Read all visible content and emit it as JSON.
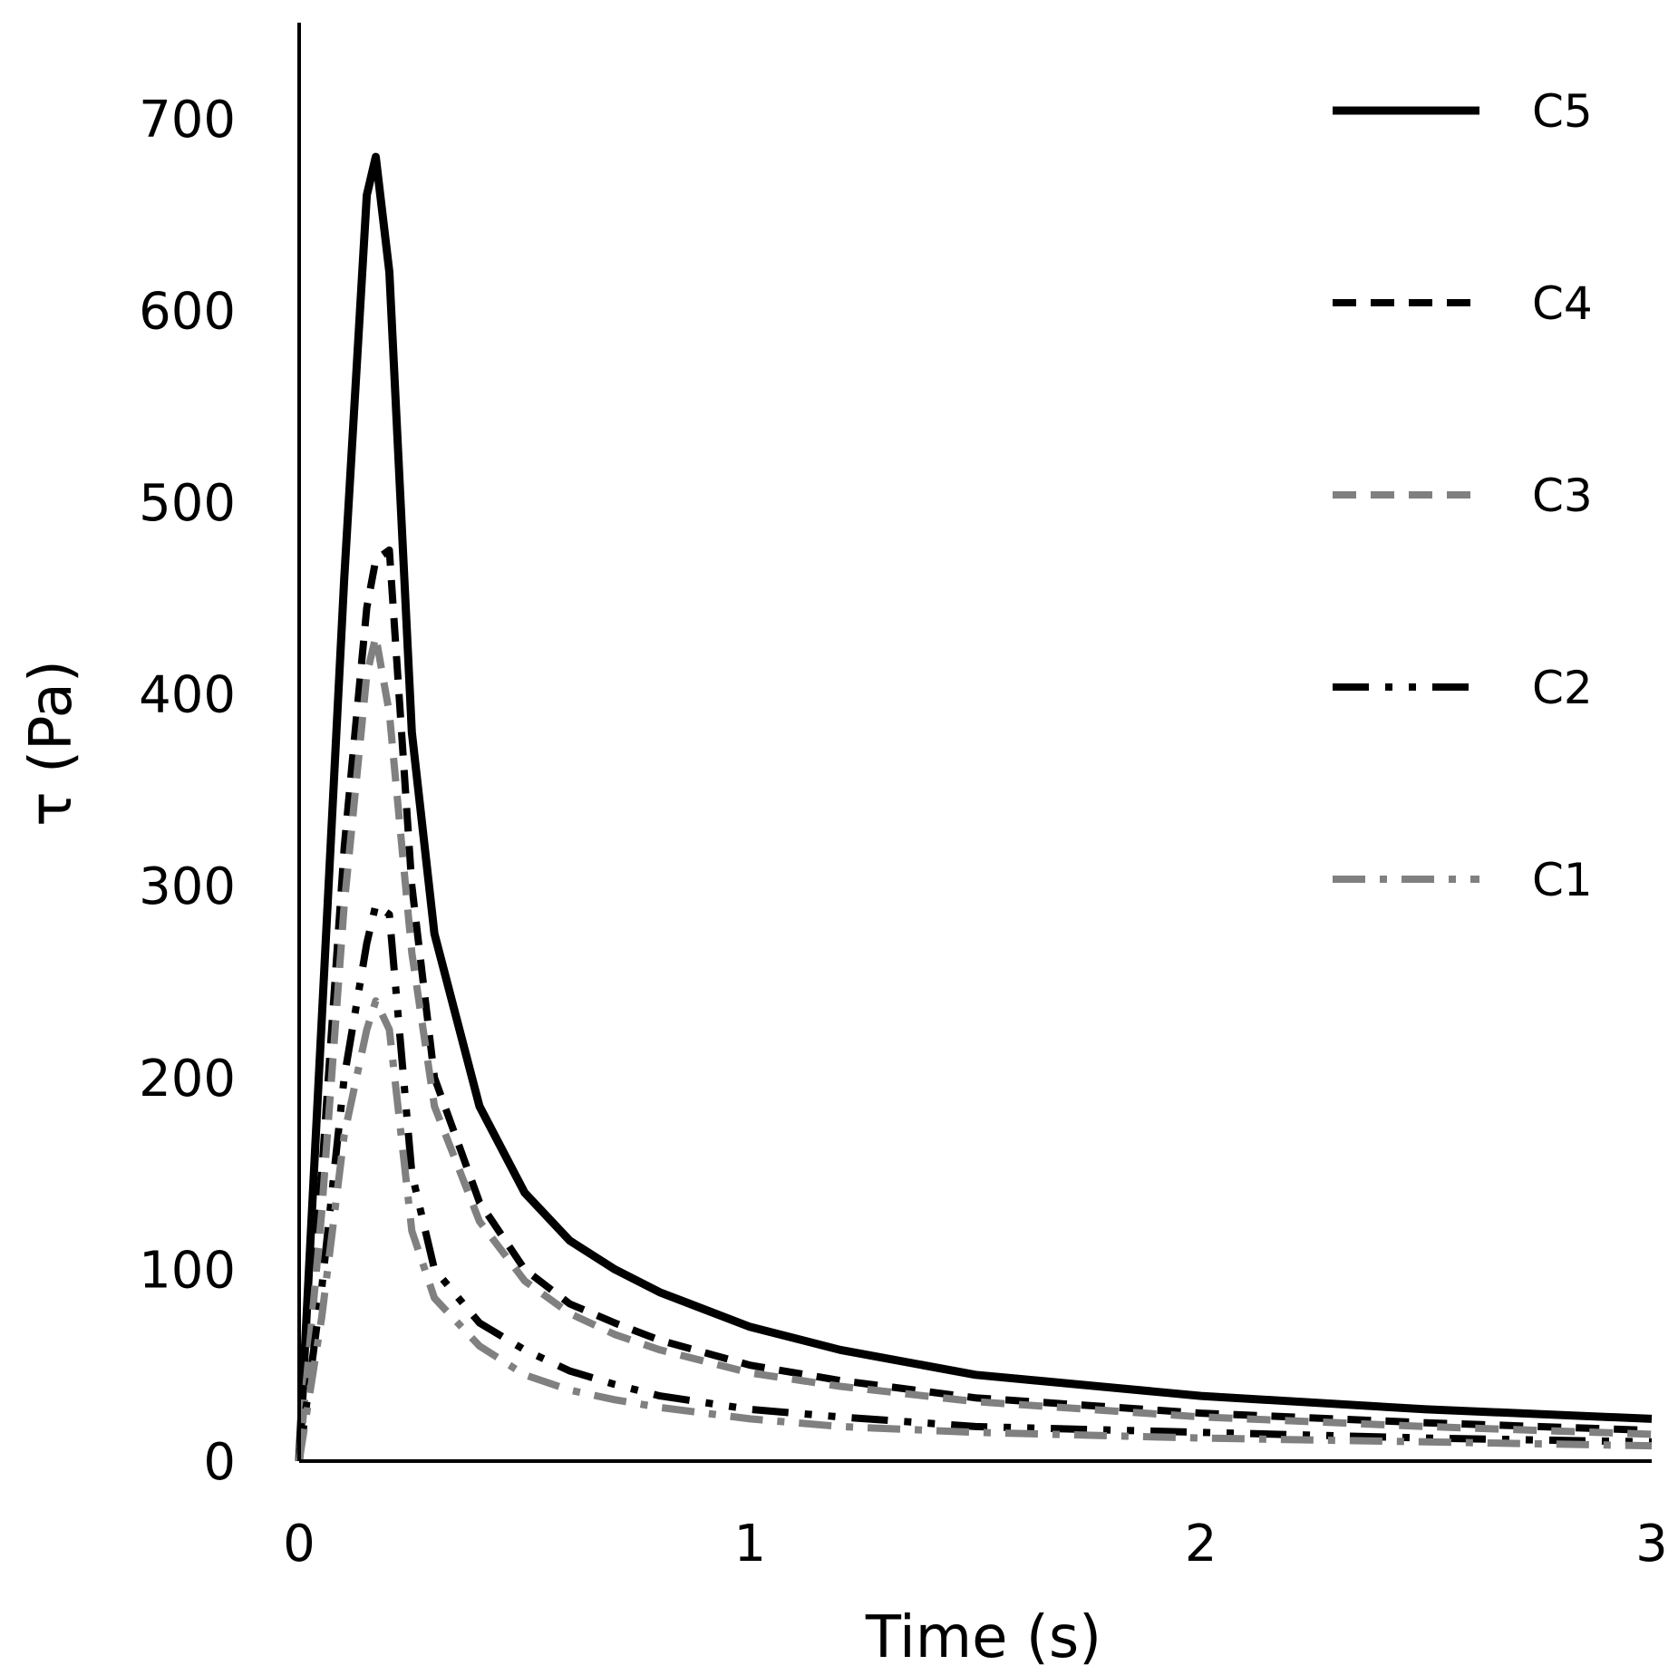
{
  "chart_data": {
    "type": "line",
    "title": "",
    "xlabel": "Time (s)",
    "ylabel": "τ (Pa)",
    "xlim": [
      0,
      3
    ],
    "ylim": [
      0,
      750
    ],
    "xticks": [
      0,
      1,
      2,
      3
    ],
    "yticks": [
      0,
      100,
      200,
      300,
      400,
      500,
      600,
      700
    ],
    "grid": false,
    "legend_position": "top-right",
    "x": [
      0,
      0.05,
      0.1,
      0.15,
      0.17,
      0.2,
      0.25,
      0.3,
      0.4,
      0.5,
      0.6,
      0.7,
      0.8,
      1.0,
      1.2,
      1.5,
      2.0,
      2.5,
      3.0
    ],
    "series": [
      {
        "name": "C5",
        "color": "#000000",
        "dash": "solid",
        "values": [
          0,
          230,
          460,
          660,
          680,
          620,
          380,
          275,
          185,
          140,
          115,
          100,
          88,
          70,
          58,
          45,
          34,
          27,
          22
        ]
      },
      {
        "name": "C4",
        "color": "#000000",
        "dash": "dash",
        "values": [
          0,
          150,
          320,
          445,
          470,
          475,
          300,
          200,
          135,
          100,
          82,
          72,
          63,
          50,
          42,
          33,
          25,
          20,
          16
        ]
      },
      {
        "name": "C3",
        "color": "#808080",
        "dash": "dash",
        "values": [
          0,
          130,
          290,
          410,
          430,
          390,
          265,
          185,
          125,
          94,
          77,
          66,
          58,
          46,
          39,
          31,
          23,
          18,
          14
        ]
      },
      {
        "name": "C2",
        "color": "#000000",
        "dash": "dashdotdot",
        "values": [
          0,
          90,
          200,
          270,
          290,
          285,
          150,
          100,
          72,
          58,
          47,
          40,
          34,
          27,
          23,
          18,
          15,
          12,
          10
        ]
      },
      {
        "name": "C1",
        "color": "#808080",
        "dash": "dashdot",
        "values": [
          0,
          75,
          170,
          225,
          240,
          225,
          120,
          85,
          60,
          45,
          37,
          32,
          28,
          22,
          18,
          15,
          12,
          10,
          8
        ]
      }
    ]
  }
}
